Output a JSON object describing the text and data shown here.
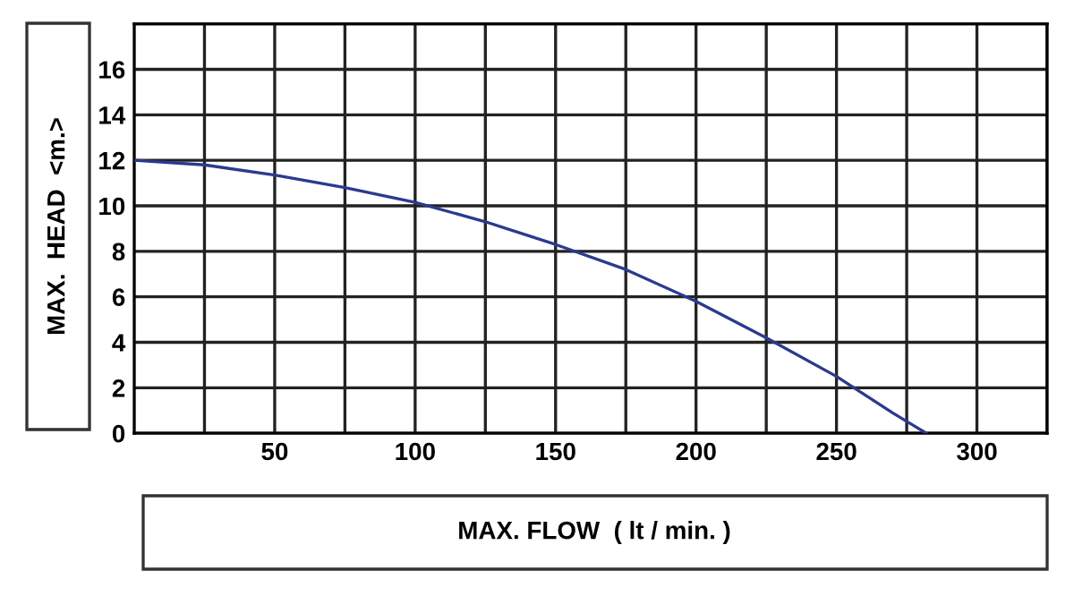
{
  "chart_data": {
    "type": "line",
    "xlabel": "MAX. FLOW  ( lt / min. )",
    "ylabel": "MAX.  HEAD  <m.>",
    "series": [
      {
        "color": "#2b3a8f",
        "x": [
          0,
          25,
          50,
          75,
          100,
          125,
          150,
          175,
          200,
          225,
          250,
          270,
          282
        ],
        "values": [
          12,
          11.8,
          11.35,
          10.8,
          10.15,
          9.3,
          8.3,
          7.2,
          5.8,
          4.2,
          2.5,
          0.9,
          0
        ]
      }
    ],
    "xlim": [
      0,
      325
    ],
    "ylim": [
      0,
      18
    ],
    "xticks": [
      {
        "value": 25,
        "label": null
      },
      50,
      {
        "value": 75,
        "label": null
      },
      100,
      {
        "value": 125,
        "label": null
      },
      150,
      {
        "value": 175,
        "label": null
      },
      200,
      {
        "value": 225,
        "label": null
      },
      250,
      {
        "value": 275,
        "label": null
      },
      300,
      {
        "value": 325,
        "label": null
      }
    ],
    "yticks": [
      0,
      2,
      4,
      6,
      8,
      10,
      12,
      14,
      16,
      {
        "value": 18,
        "label": null
      }
    ],
    "grid": true,
    "marker": "none",
    "line_style": "solid"
  }
}
